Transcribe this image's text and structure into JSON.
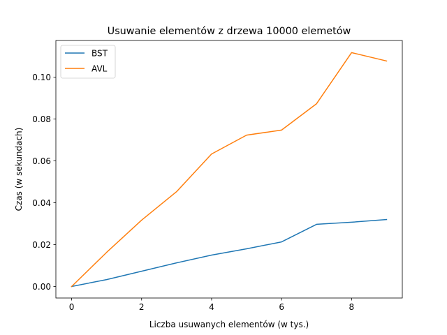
{
  "chart_data": {
    "type": "line",
    "title": "Usuwanie elementów z drzewa 10000 elemetów",
    "xlabel": "Liczba usuwanych elementów (w tys.)",
    "ylabel": "Czas (w sekundach)",
    "xlim": [
      -0.45,
      9.45
    ],
    "ylim": [
      -0.0055,
      0.1175
    ],
    "xticks": [
      0,
      2,
      4,
      6,
      8
    ],
    "xtick_labels": [
      "0",
      "2",
      "4",
      "6",
      "8"
    ],
    "yticks": [
      0.0,
      0.02,
      0.04,
      0.06,
      0.08,
      0.1
    ],
    "ytick_labels": [
      "0.00",
      "0.02",
      "0.04",
      "0.06",
      "0.08",
      "0.10"
    ],
    "grid": false,
    "legend_position": "top-left",
    "x": [
      0,
      1,
      2,
      3,
      4,
      5,
      6,
      7,
      8,
      9
    ],
    "series": [
      {
        "name": "BST",
        "color": "#1f77b4",
        "values": [
          0.0,
          0.0033,
          0.0073,
          0.0113,
          0.015,
          0.018,
          0.0213,
          0.0297,
          0.0307,
          0.032
        ]
      },
      {
        "name": "AVL",
        "color": "#ff7f0e",
        "values": [
          0.0,
          0.0163,
          0.0317,
          0.0453,
          0.0633,
          0.0723,
          0.0747,
          0.0873,
          0.1117,
          0.1077
        ]
      }
    ]
  }
}
